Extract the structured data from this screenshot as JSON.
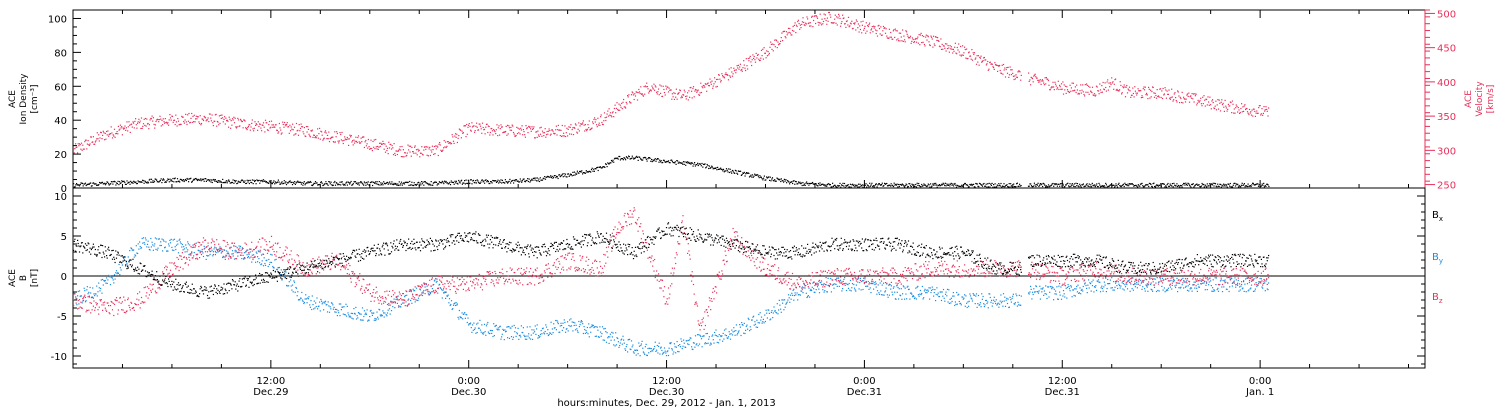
{
  "figure": {
    "xlabel": "hours:minutes, Dec. 29, 2012 - Jan.  1, 2013",
    "xticks": [
      {
        "t": 12,
        "time": "12:00",
        "date": "Dec.29"
      },
      {
        "t": 24,
        "time": "0:00",
        "date": "Dec.30"
      },
      {
        "t": 36,
        "time": "12:00",
        "date": "Dec.30"
      },
      {
        "t": 48,
        "time": "0:00",
        "date": "Dec.31"
      },
      {
        "t": 60,
        "time": "12:00",
        "date": "Dec.31"
      },
      {
        "t": 72,
        "time": "0:00",
        "date": "Jan. 1"
      }
    ]
  },
  "colors": {
    "density": "#000000",
    "velocity": "#e8305a",
    "bx": "#000000",
    "by": "#1a8ce0",
    "bz": "#e8305a",
    "axis": "#000000"
  },
  "chart_data": [
    {
      "type": "scatter",
      "panel": "top",
      "ylabel_left": [
        "ACE",
        "Ion Density",
        "[cm⁻³]"
      ],
      "ylabel_right": [
        "ACE",
        "Velocity",
        "[km/s]"
      ],
      "ylim_left": [
        0,
        105
      ],
      "ylim_right": [
        245,
        505
      ],
      "yticks_left": [
        0,
        20,
        40,
        60,
        80,
        100
      ],
      "yticks_right": [
        250,
        300,
        350,
        400,
        450,
        500
      ],
      "xlim_hours": [
        0,
        82
      ],
      "series": [
        {
          "axis": "left",
          "color": "#000000",
          "points": [
            [
              0,
              2
            ],
            [
              2,
              3
            ],
            [
              4,
              4
            ],
            [
              6,
              5
            ],
            [
              8,
              5
            ],
            [
              10,
              4
            ],
            [
              12,
              4
            ],
            [
              14,
              3
            ],
            [
              16,
              3
            ],
            [
              18,
              3
            ],
            [
              20,
              3
            ],
            [
              22,
              3
            ],
            [
              24,
              4
            ],
            [
              26,
              4
            ],
            [
              28,
              5
            ],
            [
              30,
              8
            ],
            [
              32,
              12
            ],
            [
              33,
              18
            ],
            [
              34,
              18
            ],
            [
              36,
              16
            ],
            [
              38,
              14
            ],
            [
              40,
              10
            ],
            [
              42,
              6
            ],
            [
              44,
              3
            ],
            [
              46,
              2
            ],
            [
              48,
              2
            ],
            [
              50,
              2
            ],
            [
              52,
              2
            ],
            [
              54,
              2
            ],
            [
              56,
              2
            ],
            [
              57.5,
              2
            ],
            [
              57.6,
              null
            ],
            [
              57.9,
              2
            ],
            [
              60,
              2
            ],
            [
              62,
              2
            ],
            [
              64,
              2
            ],
            [
              66,
              2
            ],
            [
              68,
              2
            ],
            [
              70,
              2
            ],
            [
              72,
              2
            ],
            [
              72.5,
              2
            ]
          ]
        },
        {
          "axis": "right",
          "color": "#e8305a",
          "points": [
            [
              0,
              300
            ],
            [
              2,
              325
            ],
            [
              4,
              340
            ],
            [
              6,
              345
            ],
            [
              8,
              347
            ],
            [
              10,
              340
            ],
            [
              12,
              335
            ],
            [
              14,
              330
            ],
            [
              16,
              320
            ],
            [
              18,
              310
            ],
            [
              20,
              300
            ],
            [
              22,
              300
            ],
            [
              24,
              333
            ],
            [
              26,
              330
            ],
            [
              28,
              328
            ],
            [
              30,
              330
            ],
            [
              32,
              345
            ],
            [
              34,
              380
            ],
            [
              35,
              395
            ],
            [
              36,
              385
            ],
            [
              37,
              380
            ],
            [
              38,
              390
            ],
            [
              40,
              415
            ],
            [
              42,
              445
            ],
            [
              43,
              465
            ],
            [
              44,
              485
            ],
            [
              46,
              495
            ],
            [
              48,
              480
            ],
            [
              50,
              470
            ],
            [
              52,
              460
            ],
            [
              54,
              445
            ],
            [
              56,
              420
            ],
            [
              57.5,
              410
            ],
            [
              57.6,
              null
            ],
            [
              57.9,
              405
            ],
            [
              59,
              400
            ],
            [
              60,
              392
            ],
            [
              62,
              388
            ],
            [
              63,
              400
            ],
            [
              64,
              385
            ],
            [
              66,
              385
            ],
            [
              68,
              375
            ],
            [
              70,
              365
            ],
            [
              72,
              358
            ],
            [
              72.5,
              355
            ]
          ]
        }
      ]
    },
    {
      "type": "scatter",
      "panel": "bottom",
      "ylabel_left": [
        "ACE",
        "B",
        "[nT]"
      ],
      "ylim": [
        -11.5,
        11
      ],
      "yticks": [
        -10,
        -5,
        0,
        5,
        10
      ],
      "xlim_hours": [
        0,
        82
      ],
      "legend": [
        {
          "label": "B",
          "sub": "x",
          "color": "#000000"
        },
        {
          "label": "B",
          "sub": "y",
          "color": "#1a8ce0"
        },
        {
          "label": "B",
          "sub": "z",
          "color": "#e8305a"
        }
      ],
      "series": [
        {
          "name": "Bx",
          "color": "#000000",
          "points": [
            [
              0,
              4
            ],
            [
              2,
              3
            ],
            [
              4,
              1
            ],
            [
              6,
              -1
            ],
            [
              8,
              -2
            ],
            [
              10,
              -1
            ],
            [
              12,
              0
            ],
            [
              14,
              1
            ],
            [
              16,
              2
            ],
            [
              18,
              3
            ],
            [
              20,
              4
            ],
            [
              22,
              4
            ],
            [
              24,
              5
            ],
            [
              26,
              4
            ],
            [
              28,
              3
            ],
            [
              30,
              4
            ],
            [
              32,
              5
            ],
            [
              34,
              3
            ],
            [
              36,
              6
            ],
            [
              38,
              5
            ],
            [
              40,
              4
            ],
            [
              42,
              3
            ],
            [
              44,
              3
            ],
            [
              46,
              4
            ],
            [
              48,
              4
            ],
            [
              50,
              4
            ],
            [
              52,
              3
            ],
            [
              54,
              3
            ],
            [
              56,
              1
            ],
            [
              57.5,
              1
            ],
            [
              57.6,
              null
            ],
            [
              57.9,
              2
            ],
            [
              60,
              2
            ],
            [
              62,
              2
            ],
            [
              64,
              1
            ],
            [
              66,
              1
            ],
            [
              68,
              2
            ],
            [
              70,
              2
            ],
            [
              72,
              2
            ],
            [
              72.5,
              2
            ]
          ]
        },
        {
          "name": "By",
          "color": "#1a8ce0",
          "points": [
            [
              0,
              -3
            ],
            [
              2,
              -1
            ],
            [
              4,
              4
            ],
            [
              6,
              4
            ],
            [
              8,
              3
            ],
            [
              10,
              3
            ],
            [
              12,
              2
            ],
            [
              14,
              -3
            ],
            [
              16,
              -4
            ],
            [
              18,
              -5
            ],
            [
              20,
              -3
            ],
            [
              22,
              -1
            ],
            [
              24,
              -6
            ],
            [
              26,
              -7
            ],
            [
              28,
              -7
            ],
            [
              30,
              -6
            ],
            [
              32,
              -7
            ],
            [
              34,
              -9
            ],
            [
              36,
              -9
            ],
            [
              38,
              -8
            ],
            [
              40,
              -7
            ],
            [
              42,
              -5
            ],
            [
              44,
              -2
            ],
            [
              46,
              -1
            ],
            [
              48,
              -1
            ],
            [
              50,
              -2
            ],
            [
              52,
              -2
            ],
            [
              54,
              -3
            ],
            [
              56,
              -3
            ],
            [
              57.5,
              -3
            ],
            [
              57.6,
              null
            ],
            [
              57.9,
              -2
            ],
            [
              60,
              -2
            ],
            [
              62,
              -1
            ],
            [
              64,
              -1
            ],
            [
              66,
              -1
            ],
            [
              68,
              -1
            ],
            [
              70,
              -1
            ],
            [
              72,
              -1
            ],
            [
              72.5,
              -1
            ]
          ]
        },
        {
          "name": "Bz",
          "color": "#e8305a",
          "points": [
            [
              0,
              -3
            ],
            [
              2,
              -4
            ],
            [
              4,
              -3
            ],
            [
              6,
              1
            ],
            [
              8,
              4
            ],
            [
              10,
              3
            ],
            [
              12,
              4
            ],
            [
              14,
              1
            ],
            [
              16,
              2
            ],
            [
              18,
              -2
            ],
            [
              20,
              -3
            ],
            [
              22,
              -1
            ],
            [
              24,
              -1
            ],
            [
              26,
              0
            ],
            [
              28,
              0
            ],
            [
              30,
              2
            ],
            [
              32,
              1
            ],
            [
              33,
              6
            ],
            [
              34,
              8
            ],
            [
              36,
              -3
            ],
            [
              37,
              7
            ],
            [
              38,
              -7
            ],
            [
              40,
              5
            ],
            [
              42,
              1
            ],
            [
              44,
              -1
            ],
            [
              46,
              0
            ],
            [
              48,
              0
            ],
            [
              50,
              0
            ],
            [
              52,
              1
            ],
            [
              54,
              1
            ],
            [
              56,
              1
            ],
            [
              57.5,
              1
            ],
            [
              57.6,
              null
            ],
            [
              57.9,
              1
            ],
            [
              60,
              0
            ],
            [
              62,
              1
            ],
            [
              64,
              0
            ],
            [
              66,
              0
            ],
            [
              68,
              0
            ],
            [
              70,
              0
            ],
            [
              72,
              0
            ],
            [
              72.5,
              0
            ]
          ]
        }
      ]
    }
  ]
}
